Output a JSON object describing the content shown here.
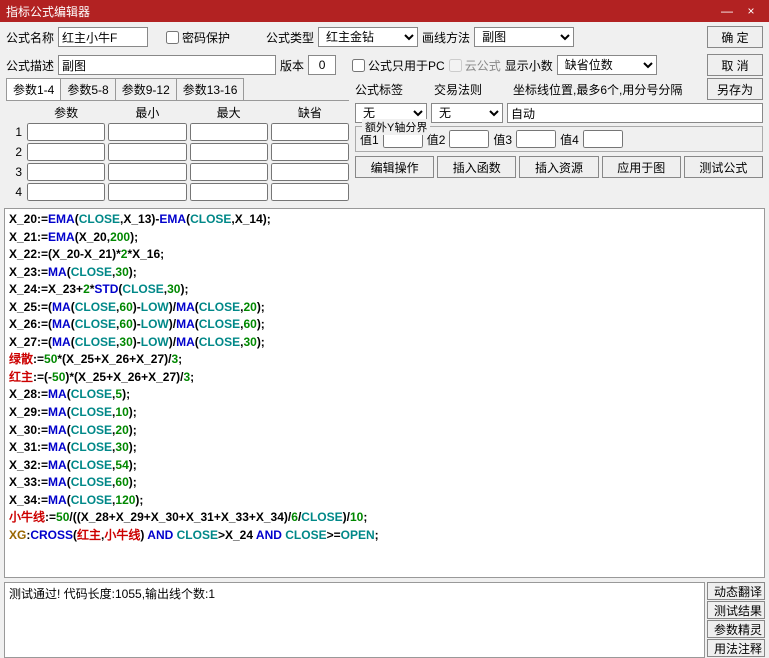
{
  "window": {
    "title": "指标公式编辑器",
    "min": "—",
    "close": "×"
  },
  "row1": {
    "name_label": "公式名称",
    "name_value": "红主小牛F",
    "pwd_label": "密码保护",
    "type_label": "公式类型",
    "type_value": "红主金钻",
    "draw_label": "画线方法",
    "draw_value": "副图",
    "ok": "确 定"
  },
  "row2": {
    "desc_label": "公式描述",
    "desc_value": "副图",
    "ver_label": "版本",
    "ver_value": "0",
    "pc_only": "公式只用于PC",
    "cloud": "云公式",
    "dec_label": "显示小数",
    "dec_value": "缺省位数",
    "cancel": "取 消"
  },
  "tabs": {
    "t1": "参数1-4",
    "t2": "参数5-8",
    "t3": "参数9-12",
    "t4": "参数13-16"
  },
  "phead": {
    "c1": "参数",
    "c2": "最小",
    "c3": "最大",
    "c4": "缺省"
  },
  "right": {
    "tag_label": "公式标签",
    "tag_value": "无",
    "rule_label": "交易法则",
    "rule_value": "无",
    "coord_label": "坐标线位置,最多6个,用分号分隔",
    "coord_value": "自动",
    "saveas": "另存为",
    "yaxis_title": "额外Y轴分界",
    "v1": "值1",
    "v2": "值2",
    "v3": "值3",
    "v4": "值4",
    "b1": "编辑操作",
    "b2": "插入函数",
    "b3": "插入资源",
    "b4": "应用于图",
    "b5": "测试公式"
  },
  "status": "测试通过! 代码长度:1055,输出线个数:1",
  "side": {
    "s1": "动态翻译",
    "s2": "测试结果",
    "s3": "参数精灵",
    "s4": "用法注释"
  },
  "colors": {
    "titlebar": "#b22222"
  }
}
